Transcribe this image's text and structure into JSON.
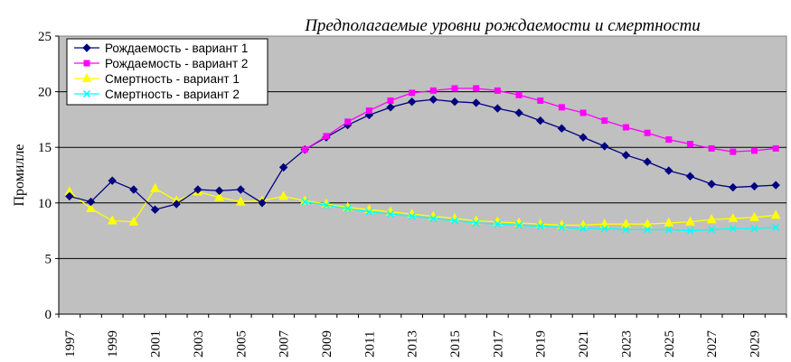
{
  "chart_data": {
    "type": "line",
    "title": "Предполагаемые уровни рождаемости и смертности",
    "ylabel": "Промилле",
    "xlabel": "",
    "ylim": [
      0,
      25
    ],
    "yticks": [
      "0",
      "5",
      "10",
      "15",
      "20",
      "25"
    ],
    "xlim": [
      1997,
      2030
    ],
    "xticks": [
      "1997",
      "1999",
      "2001",
      "2003",
      "2005",
      "2007",
      "2009",
      "2011",
      "2013",
      "2015",
      "2017",
      "2019",
      "2021",
      "2023",
      "2025",
      "2027",
      "2029"
    ],
    "grid": true,
    "legend_position": "top-left",
    "plot_background": "#c0c0c0",
    "series": [
      {
        "name": "Рождаемость - вариант 1",
        "color": "#000080",
        "marker": "diamond",
        "x": [
          1997,
          1998,
          1999,
          2000,
          2001,
          2002,
          2003,
          2004,
          2005,
          2006,
          2007,
          2008,
          2009,
          2010,
          2011,
          2012,
          2013,
          2014,
          2015,
          2016,
          2017,
          2018,
          2019,
          2020,
          2021,
          2022,
          2023,
          2024,
          2025,
          2026,
          2027,
          2028,
          2029,
          2030
        ],
        "values": [
          10.6,
          10.1,
          12.0,
          11.2,
          9.4,
          9.9,
          11.2,
          11.1,
          11.2,
          10.0,
          13.2,
          14.8,
          15.9,
          17.0,
          17.9,
          18.6,
          19.1,
          19.3,
          19.1,
          19.0,
          18.5,
          18.1,
          17.4,
          16.7,
          15.9,
          15.1,
          14.3,
          13.7,
          12.9,
          12.4,
          11.7,
          11.4,
          11.5,
          11.6
        ]
      },
      {
        "name": "Рождаемость - вариант 2",
        "color": "#ff00ff",
        "marker": "square",
        "x": [
          2008,
          2009,
          2010,
          2011,
          2012,
          2013,
          2014,
          2015,
          2016,
          2017,
          2018,
          2019,
          2020,
          2021,
          2022,
          2023,
          2024,
          2025,
          2026,
          2027,
          2028,
          2029,
          2030
        ],
        "values": [
          14.8,
          16.0,
          17.3,
          18.3,
          19.2,
          19.9,
          20.1,
          20.3,
          20.3,
          20.1,
          19.7,
          19.2,
          18.6,
          18.1,
          17.4,
          16.8,
          16.3,
          15.7,
          15.3,
          14.9,
          14.6,
          14.7,
          14.9
        ]
      },
      {
        "name": "Смертность - вариант 1",
        "color": "#ffff00",
        "marker": "triangle",
        "x": [
          1997,
          1998,
          1999,
          2000,
          2001,
          2002,
          2003,
          2004,
          2005,
          2006,
          2007,
          2008,
          2009,
          2010,
          2011,
          2012,
          2013,
          2014,
          2015,
          2016,
          2017,
          2018,
          2019,
          2020,
          2021,
          2022,
          2023,
          2024,
          2025,
          2026,
          2027,
          2028,
          2029,
          2030
        ],
        "values": [
          11.0,
          9.5,
          8.4,
          8.3,
          11.3,
          10.2,
          11.0,
          10.5,
          10.1,
          10.2,
          10.6,
          10.2,
          9.9,
          9.6,
          9.4,
          9.2,
          9.0,
          8.8,
          8.6,
          8.4,
          8.3,
          8.2,
          8.1,
          8.0,
          8.0,
          8.1,
          8.1,
          8.1,
          8.2,
          8.3,
          8.5,
          8.6,
          8.7,
          8.9
        ]
      },
      {
        "name": "Смертность - вариант 2",
        "color": "#00ffff",
        "marker": "x",
        "x": [
          2008,
          2009,
          2010,
          2011,
          2012,
          2013,
          2014,
          2015,
          2016,
          2017,
          2018,
          2019,
          2020,
          2021,
          2022,
          2023,
          2024,
          2025,
          2026,
          2027,
          2028,
          2029,
          2030
        ],
        "values": [
          10.1,
          9.8,
          9.5,
          9.2,
          9.0,
          8.8,
          8.6,
          8.4,
          8.2,
          8.1,
          8.0,
          7.9,
          7.8,
          7.7,
          7.7,
          7.6,
          7.6,
          7.6,
          7.5,
          7.6,
          7.7,
          7.7,
          7.8
        ]
      }
    ]
  }
}
